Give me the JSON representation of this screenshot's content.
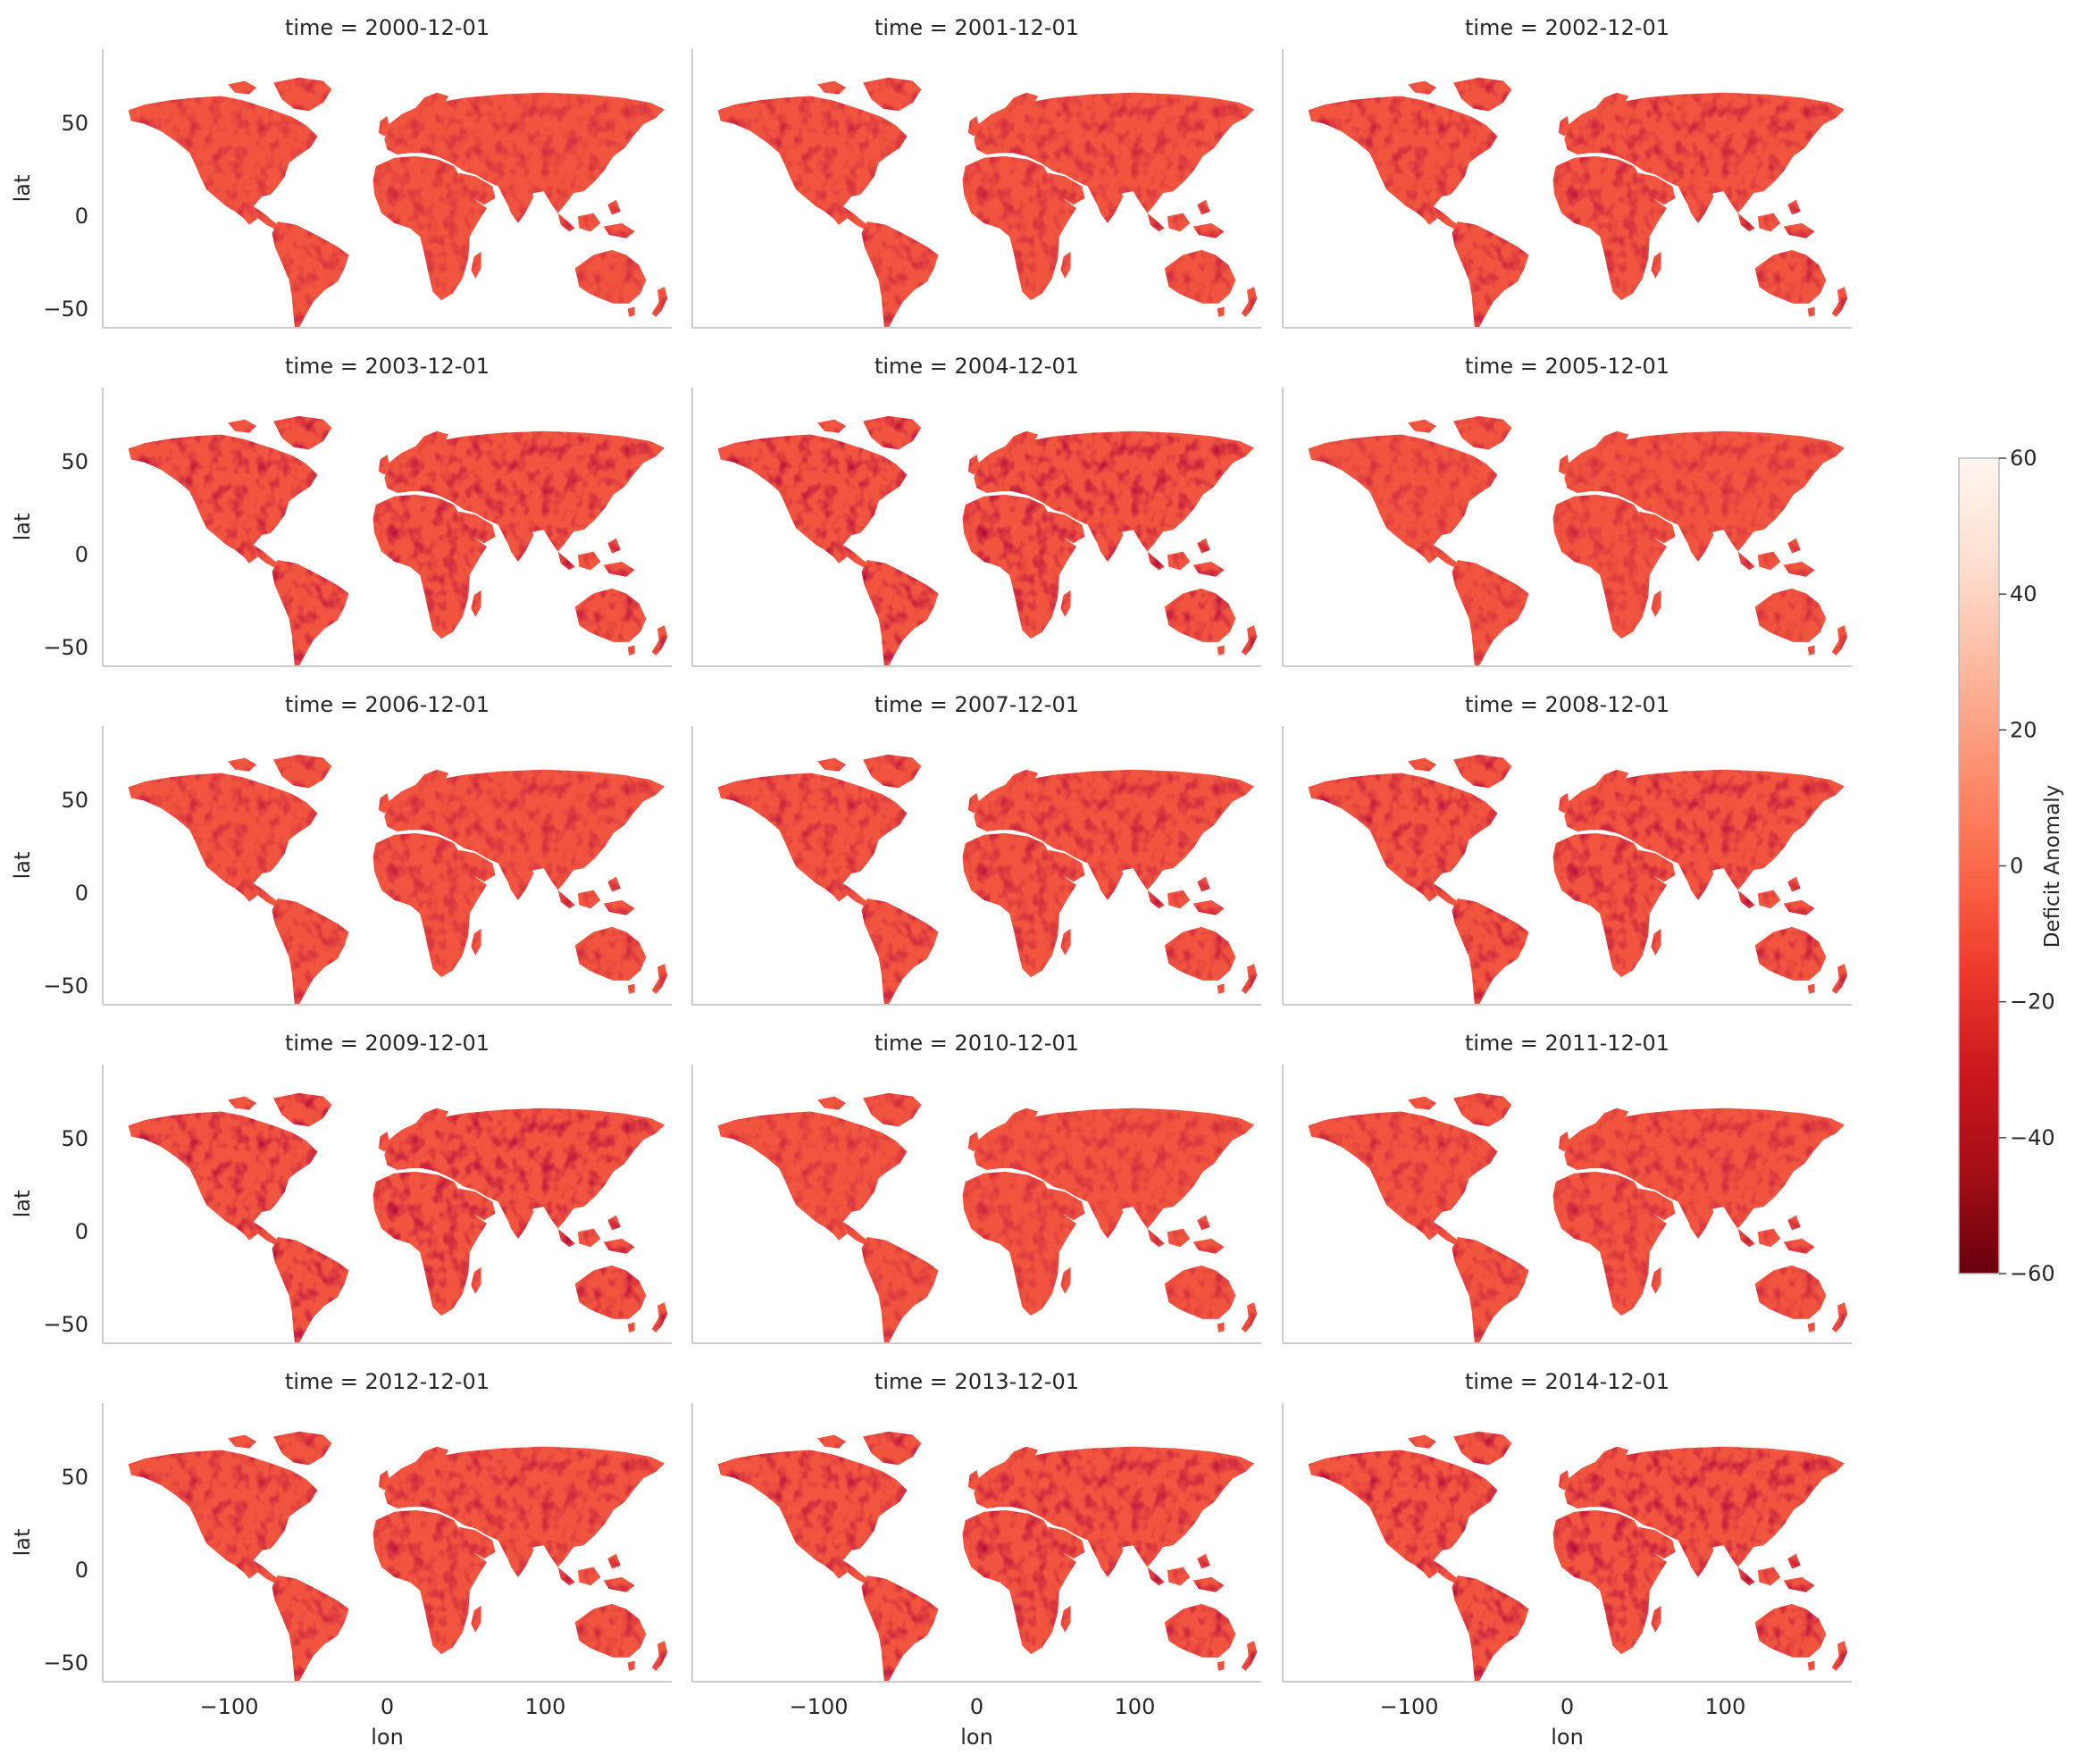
{
  "chart_data": {
    "type": "heatmap",
    "description_kind": "facet grid of global maps",
    "panels": [
      {
        "title": "time = 2000-12-01"
      },
      {
        "title": "time = 2001-12-01"
      },
      {
        "title": "time = 2002-12-01"
      },
      {
        "title": "time = 2003-12-01"
      },
      {
        "title": "time = 2004-12-01"
      },
      {
        "title": "time = 2005-12-01"
      },
      {
        "title": "time = 2006-12-01"
      },
      {
        "title": "time = 2007-12-01"
      },
      {
        "title": "time = 2008-12-01"
      },
      {
        "title": "time = 2009-12-01"
      },
      {
        "title": "time = 2010-12-01"
      },
      {
        "title": "time = 2011-12-01"
      },
      {
        "title": "time = 2012-12-01"
      },
      {
        "title": "time = 2013-12-01"
      },
      {
        "title": "time = 2014-12-01"
      }
    ],
    "xlabel": "lon",
    "ylabel": "lat",
    "xlim": [
      -180,
      180
    ],
    "ylim": [
      -60,
      90
    ],
    "xticks": [
      -100,
      0,
      100
    ],
    "xtick_labels": [
      "−100",
      "0",
      "100"
    ],
    "yticks": [
      50,
      0,
      -50
    ],
    "ytick_labels": [
      "50",
      "0",
      "−50"
    ],
    "colorbar": {
      "label": "Deficit Anomaly",
      "range": [
        -60,
        60
      ],
      "ticks": [
        60,
        40,
        20,
        0,
        -20,
        -40,
        -60
      ],
      "tick_labels": [
        "60",
        "40",
        "20",
        "0",
        "−20",
        "−40",
        "−60"
      ],
      "colormap": "Reds_r",
      "colors": [
        "#67000d",
        "#a50f15",
        "#cb181d",
        "#ef3b2c",
        "#fb6a4a",
        "#fc9272",
        "#fcbba1",
        "#fee0d2",
        "#fff5f0"
      ]
    },
    "grid": false
  }
}
